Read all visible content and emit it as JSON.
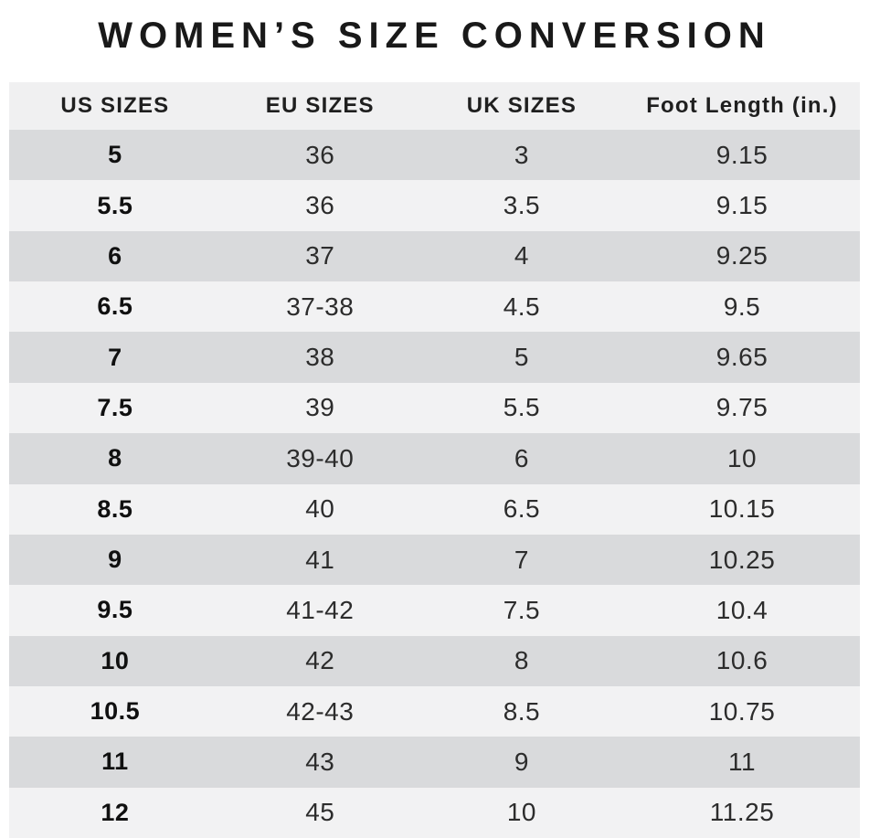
{
  "title": "WOMEN’S SIZE CONVERSION",
  "colors": {
    "title_color": "#191919",
    "header_bg": "#f0f0f1",
    "row_dark": "#d9dadc",
    "row_light": "#f2f2f3",
    "page_bg": "#ffffff"
  },
  "chart_data": {
    "type": "table",
    "title": "WOMEN’S SIZE CONVERSION",
    "columns": [
      "US SIZES",
      "EU SIZES",
      "UK SIZES",
      "Foot Length (in.)"
    ],
    "rows": [
      [
        "5",
        "36",
        "3",
        "9.15"
      ],
      [
        "5.5",
        "36",
        "3.5",
        "9.15"
      ],
      [
        "6",
        "37",
        "4",
        "9.25"
      ],
      [
        "6.5",
        "37-38",
        "4.5",
        "9.5"
      ],
      [
        "7",
        "38",
        "5",
        "9.65"
      ],
      [
        "7.5",
        "39",
        "5.5",
        "9.75"
      ],
      [
        "8",
        "39-40",
        "6",
        "10"
      ],
      [
        "8.5",
        "40",
        "6.5",
        "10.15"
      ],
      [
        "9",
        "41",
        "7",
        "10.25"
      ],
      [
        "9.5",
        "41-42",
        "7.5",
        "10.4"
      ],
      [
        "10",
        "42",
        "8",
        "10.6"
      ],
      [
        "10.5",
        "42-43",
        "8.5",
        "10.75"
      ],
      [
        "11",
        "43",
        "9",
        "11"
      ],
      [
        "12",
        "45",
        "10",
        "11.25"
      ]
    ]
  }
}
